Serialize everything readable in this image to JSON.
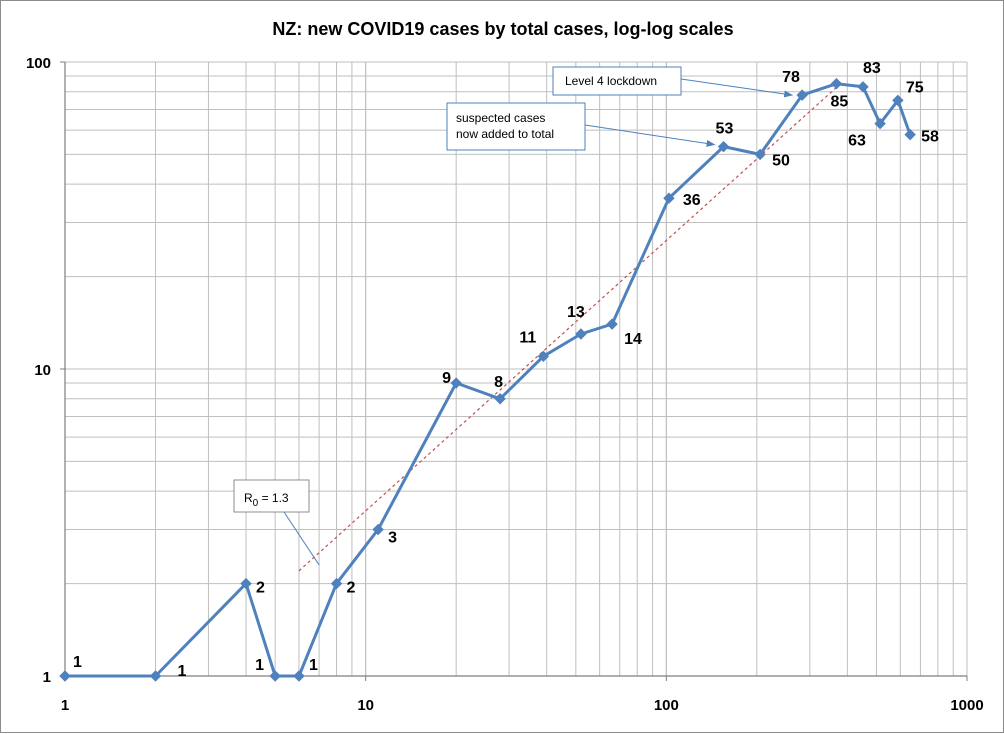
{
  "chart_data": {
    "type": "line",
    "title": "NZ: new COVID19 cases by total cases, log-log scales",
    "xlabel": "",
    "ylabel": "",
    "x_scale": "log",
    "y_scale": "log",
    "xlim": [
      1,
      1000
    ],
    "ylim": [
      1,
      100
    ],
    "x_ticks": [
      "1",
      "10",
      "100",
      "1000"
    ],
    "y_ticks": [
      "1",
      "10",
      "100"
    ],
    "grid": true,
    "legend": "none",
    "colors": {
      "series": "#4f81bd",
      "trend": "#c0504d",
      "grid": "#bfbfbf",
      "axis": "#7f7f7f"
    },
    "series": [
      {
        "x": [
          1,
          2,
          4,
          5,
          6,
          8,
          11,
          20,
          28,
          39,
          52,
          66,
          102,
          155,
          205,
          283,
          368,
          451,
          514,
          589,
          647
        ],
        "values": [
          1,
          1,
          2,
          1,
          1,
          2,
          3,
          9,
          8,
          11,
          13,
          14,
          36,
          53,
          50,
          78,
          85,
          83,
          63,
          75,
          58
        ],
        "labels": [
          "1",
          "1",
          "2",
          "1",
          "1",
          "2",
          "3",
          "9",
          "8",
          "11",
          "13",
          "14",
          "36",
          "53",
          "50",
          "78",
          "85",
          "83",
          "63",
          "75",
          "58"
        ]
      }
    ],
    "trendline": {
      "style": "dotted",
      "points": [
        [
          6,
          2.2
        ],
        [
          380,
          85
        ]
      ]
    },
    "annotations": [
      {
        "id": "r0",
        "text_main": "R",
        "text_sub": "0",
        "text_rest": " = 1.3",
        "target": [
          7,
          2.3
        ]
      },
      {
        "id": "suspected",
        "lines": [
          "suspected cases",
          "now added to total"
        ],
        "target": [
          155,
          53
        ]
      },
      {
        "id": "lockdown",
        "lines": [
          "Level 4 lockdown"
        ],
        "target": [
          283,
          78
        ]
      }
    ]
  }
}
